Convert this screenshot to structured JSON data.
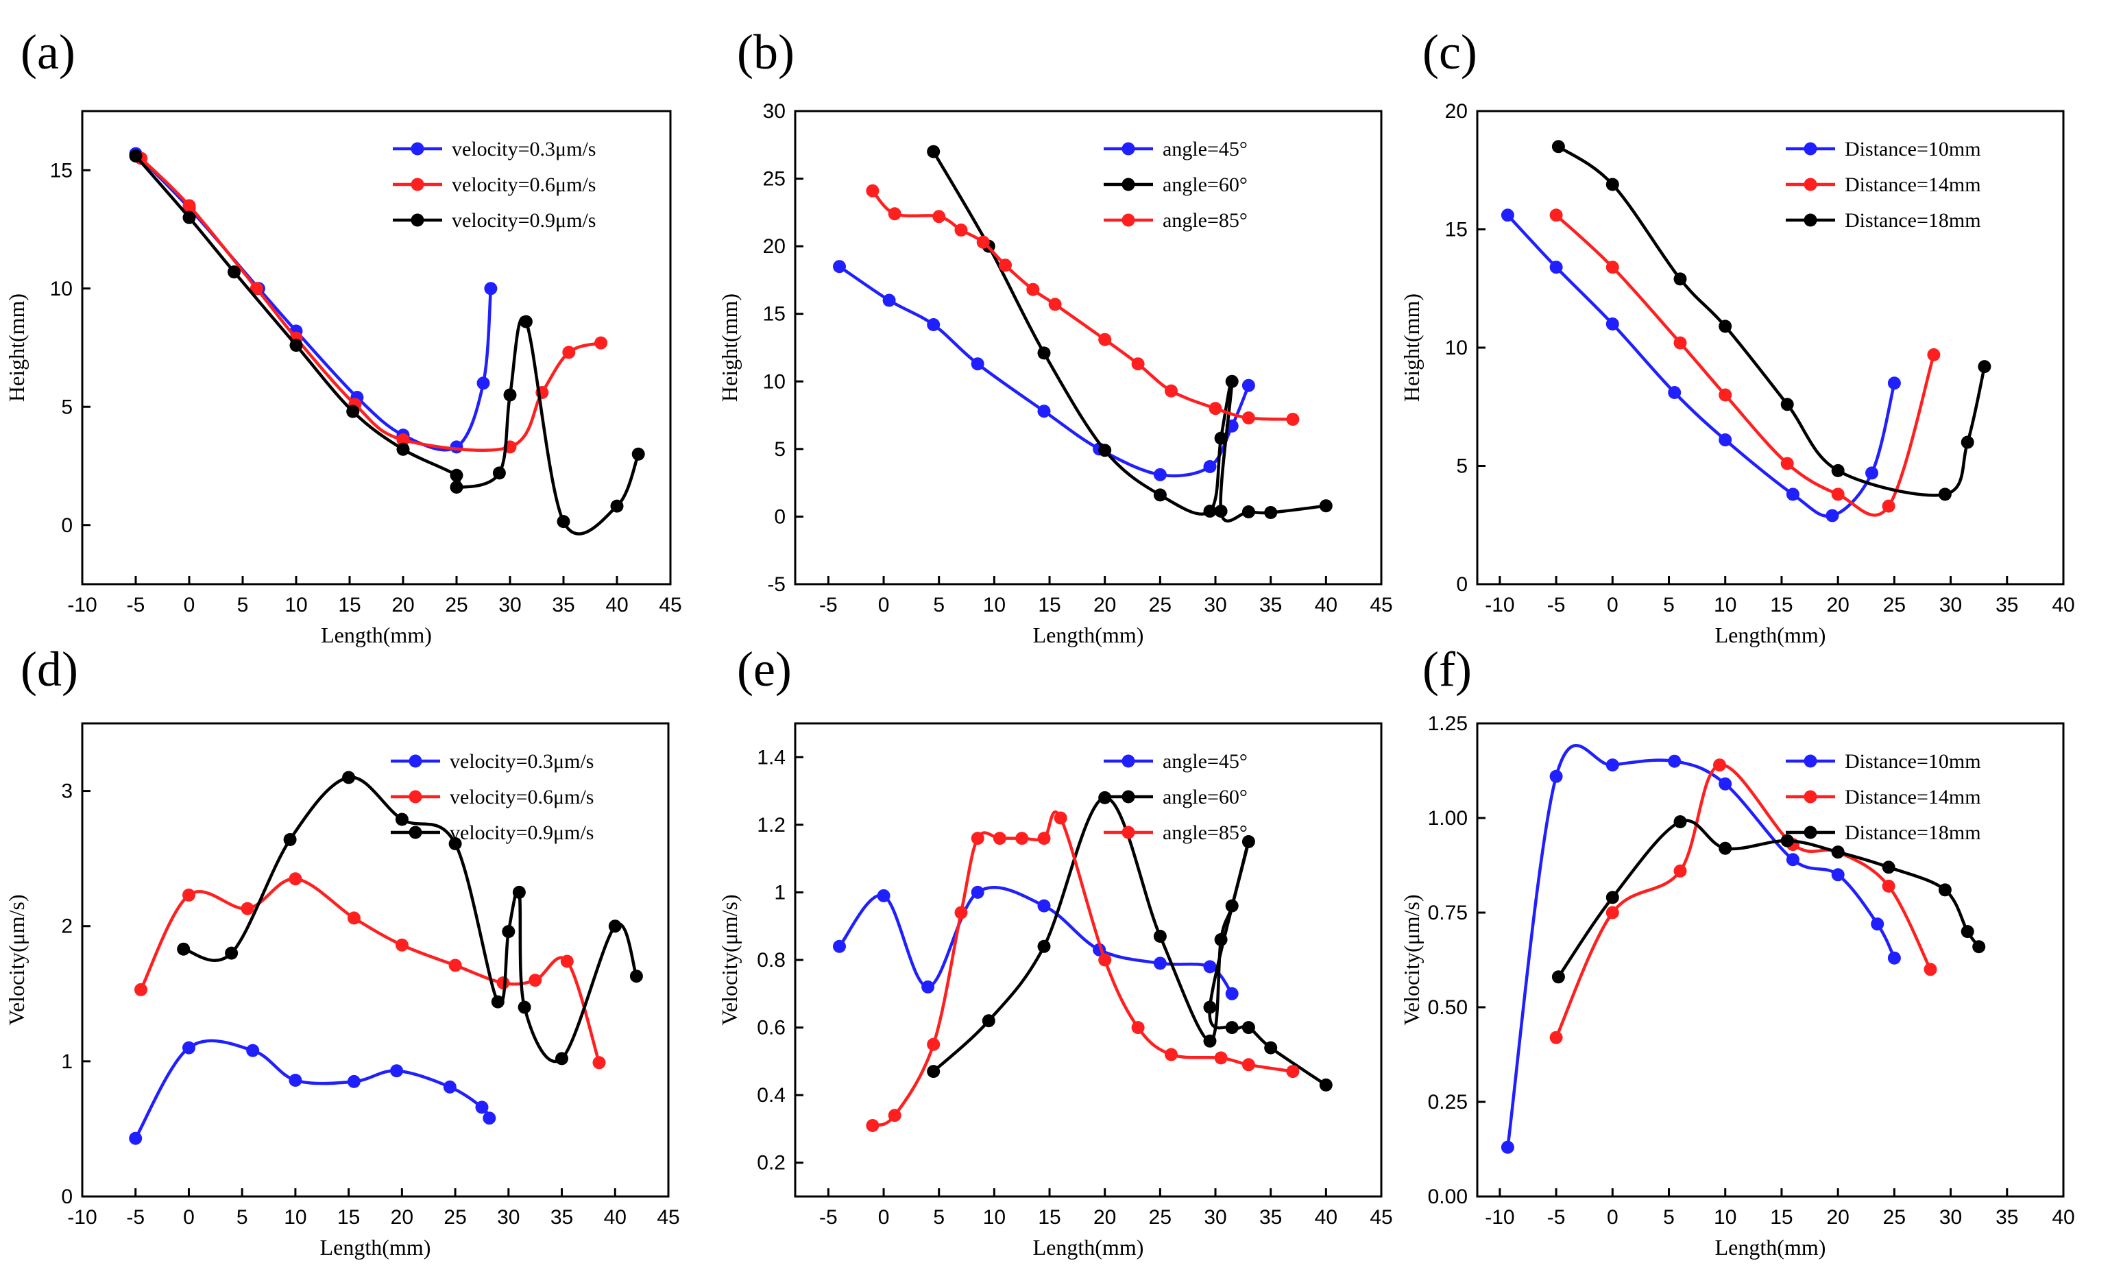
{
  "chart_data": [
    {
      "type": "line",
      "panel_label": "(a)",
      "xlabel": "Length(mm)",
      "ylabel": "Height(mm)",
      "xlim": [
        -10,
        45
      ],
      "ylim": [
        -2.5,
        17.5
      ],
      "xticks": [
        -10,
        -5,
        0,
        5,
        10,
        15,
        20,
        25,
        30,
        35,
        40,
        45
      ],
      "yticks": [
        0,
        5,
        10,
        15
      ],
      "legend": "top-right",
      "series": [
        {
          "name": "velocity=0.3μm/s",
          "color": "#1f1fff",
          "x": [
            -5,
            0,
            6.5,
            10,
            15.7,
            20,
            25,
            27.5,
            28.2
          ],
          "y": [
            15.7,
            13.4,
            10,
            8.2,
            5.4,
            3.8,
            3.3,
            6,
            10
          ]
        },
        {
          "name": "velocity=0.6μm/s",
          "color": "#ff1f1f",
          "x": [
            -4.5,
            0,
            6.3,
            10,
            15.5,
            20,
            30,
            33,
            35.5,
            38.5
          ],
          "y": [
            15.5,
            13.5,
            10,
            7.9,
            5.1,
            3.6,
            3.3,
            5.6,
            7.3,
            7.7
          ]
        },
        {
          "name": "velocity=0.9μm/s",
          "color": "#000000",
          "x": [
            -5,
            0,
            4.2,
            10,
            15.3,
            20,
            25,
            25,
            29,
            30,
            31.5,
            35,
            40,
            42
          ],
          "y": [
            15.6,
            13,
            10.7,
            7.6,
            4.8,
            3.2,
            2.1,
            1.6,
            2.2,
            5.5,
            8.6,
            0.15,
            0.8,
            3
          ]
        }
      ]
    },
    {
      "type": "line",
      "panel_label": "(b)",
      "xlabel": "Length(mm)",
      "ylabel": "Height(mm)",
      "xlim": [
        -8,
        45
      ],
      "ylim": [
        -5,
        30
      ],
      "xticks": [
        -5,
        0,
        5,
        10,
        15,
        20,
        25,
        30,
        35,
        40,
        45
      ],
      "yticks": [
        -5,
        0,
        5,
        10,
        15,
        20,
        25,
        30
      ],
      "legend": "top-right",
      "series": [
        {
          "name": "angle=45°",
          "color": "#1f1fff",
          "x": [
            -4,
            0.5,
            4.5,
            8.5,
            14.5,
            19.5,
            25,
            29.5,
            31.5,
            33
          ],
          "y": [
            18.5,
            16,
            14.2,
            11.3,
            7.8,
            5,
            3.1,
            3.7,
            6.7,
            9.7
          ]
        },
        {
          "name": "angle=60°",
          "color": "#000000",
          "x": [
            4.5,
            9.5,
            14.5,
            20,
            25,
            29.5,
            30.5,
            31.5,
            30.5,
            33,
            35,
            40
          ],
          "y": [
            27,
            20,
            12.1,
            4.9,
            1.6,
            0.4,
            5.8,
            10,
            0.4,
            0.35,
            0.3,
            0.8
          ]
        },
        {
          "name": "angle=85°",
          "color": "#ff1f1f",
          "x": [
            -1,
            1,
            5,
            7,
            9,
            11,
            13.5,
            15.5,
            20,
            23,
            26,
            30,
            33,
            37
          ],
          "y": [
            24.1,
            22.4,
            22.2,
            21.2,
            20.3,
            18.6,
            16.8,
            15.7,
            13.1,
            11.3,
            9.3,
            8,
            7.3,
            7.2
          ]
        }
      ]
    },
    {
      "type": "line",
      "panel_label": "(c)",
      "xlabel": "Length(mm)",
      "ylabel": "Height(mm)",
      "xlim": [
        -12,
        40
      ],
      "ylim": [
        0,
        20
      ],
      "xticks": [
        -10,
        -5,
        0,
        5,
        10,
        15,
        20,
        25,
        30,
        35,
        40
      ],
      "yticks": [
        0,
        5,
        10,
        15,
        20
      ],
      "legend": "top-right",
      "series": [
        {
          "name": "Distance=10mm",
          "color": "#1f1fff",
          "x": [
            -9.3,
            -5,
            0,
            5.5,
            10,
            16,
            19.5,
            23,
            25
          ],
          "y": [
            15.6,
            13.4,
            11,
            8.1,
            6.1,
            3.8,
            2.9,
            4.7,
            8.5
          ]
        },
        {
          "name": "Distance=14mm",
          "color": "#ff1f1f",
          "x": [
            -5,
            0,
            6,
            10,
            15.5,
            20,
            24.5,
            28.5
          ],
          "y": [
            15.6,
            13.4,
            10.2,
            8,
            5.1,
            3.8,
            3.3,
            9.7
          ]
        },
        {
          "name": "Distance=18mm",
          "color": "#000000",
          "x": [
            -4.8,
            0,
            6,
            10,
            15.5,
            20,
            29.5,
            31.5,
            33
          ],
          "y": [
            18.5,
            16.9,
            12.9,
            10.9,
            7.6,
            4.8,
            3.8,
            6,
            9.2
          ]
        }
      ]
    },
    {
      "type": "line",
      "panel_label": "(d)",
      "xlabel": "Length(mm)",
      "ylabel": "Velocity(μm/s)",
      "xlim": [
        -10,
        45
      ],
      "ylim": [
        0,
        3.5
      ],
      "xticks": [
        -10,
        -5,
        0,
        5,
        10,
        15,
        20,
        25,
        30,
        35,
        40,
        45
      ],
      "yticks": [
        0,
        1,
        2,
        3
      ],
      "legend": "top-right",
      "series": [
        {
          "name": "velocity=0.3μm/s",
          "color": "#1f1fff",
          "x": [
            -5,
            0,
            6,
            10,
            15.5,
            19.5,
            24.5,
            27.5,
            28.2
          ],
          "y": [
            0.43,
            1.1,
            1.08,
            0.86,
            0.85,
            0.93,
            0.81,
            0.66,
            0.58
          ]
        },
        {
          "name": "velocity=0.6μm/s",
          "color": "#ff1f1f",
          "x": [
            -4.5,
            0,
            5.5,
            10,
            15.5,
            20,
            25,
            29.5,
            32.5,
            35.5,
            38.5
          ],
          "y": [
            1.53,
            2.23,
            2.13,
            2.35,
            2.06,
            1.86,
            1.71,
            1.58,
            1.6,
            1.74,
            0.99
          ]
        },
        {
          "name": "velocity=0.9μm/s",
          "color": "#000000",
          "x": [
            -0.5,
            4,
            9.5,
            15,
            20,
            25,
            29,
            30,
            31,
            31.5,
            35,
            40,
            42
          ],
          "y": [
            1.83,
            1.8,
            2.64,
            3.1,
            2.79,
            2.61,
            1.44,
            1.96,
            2.25,
            1.4,
            1.02,
            2,
            1.63
          ]
        }
      ]
    },
    {
      "type": "line",
      "panel_label": "(e)",
      "xlabel": "Length(mm)",
      "ylabel": "Velocity(μm/s)",
      "xlim": [
        -8,
        45
      ],
      "ylim": [
        0.1,
        1.5
      ],
      "xticks": [
        -5,
        0,
        5,
        10,
        15,
        20,
        25,
        30,
        35,
        40,
        45
      ],
      "yticks": [
        0.2,
        0.4,
        0.6,
        0.8,
        1.0,
        1.2,
        1.4
      ],
      "legend": "top-right",
      "series": [
        {
          "name": "angle=45°",
          "color": "#1f1fff",
          "x": [
            -4,
            0,
            4,
            8.5,
            14.5,
            19.5,
            25,
            29.5,
            31.5
          ],
          "y": [
            0.84,
            0.99,
            0.72,
            1.0,
            0.96,
            0.83,
            0.79,
            0.78,
            0.7
          ]
        },
        {
          "name": "angle=60°",
          "color": "#000000",
          "x": [
            4.5,
            9.5,
            14.5,
            20,
            25,
            29.5,
            30.5,
            31.5,
            33,
            29.5,
            31.5,
            33,
            35,
            40
          ],
          "y": [
            0.47,
            0.62,
            0.84,
            1.28,
            0.87,
            0.56,
            0.86,
            0.96,
            1.15,
            0.66,
            0.6,
            0.6,
            0.54,
            0.43
          ]
        },
        {
          "name": "angle=85°",
          "color": "#ff1f1f",
          "x": [
            -1,
            1,
            4.5,
            7,
            8.5,
            10.5,
            12.5,
            14.5,
            16,
            20,
            23,
            26,
            30.5,
            33,
            37
          ],
          "y": [
            0.31,
            0.34,
            0.55,
            0.94,
            1.16,
            1.16,
            1.16,
            1.16,
            1.22,
            0.8,
            0.6,
            0.52,
            0.51,
            0.49,
            0.47
          ]
        }
      ]
    },
    {
      "type": "line",
      "panel_label": "(f)",
      "xlabel": "Length(mm)",
      "ylabel": "Velocity(μm/s)",
      "xlim": [
        -12,
        40
      ],
      "ylim": [
        0,
        1.25
      ],
      "xticks": [
        -10,
        -5,
        0,
        5,
        10,
        15,
        20,
        25,
        30,
        35,
        40
      ],
      "yticks": [
        0.0,
        0.25,
        0.5,
        0.75,
        1.0,
        1.25
      ],
      "ytick_labels": [
        "0.00",
        "0.25",
        "0.50",
        "0.75",
        "1.00",
        "1.25"
      ],
      "legend": "top-right",
      "series": [
        {
          "name": "Distance=10mm",
          "color": "#1f1fff",
          "x": [
            -9.3,
            -5,
            0,
            5.5,
            10,
            16,
            20,
            23.5,
            25
          ],
          "y": [
            0.13,
            1.11,
            1.14,
            1.15,
            1.09,
            0.89,
            0.85,
            0.72,
            0.63
          ]
        },
        {
          "name": "Distance=14mm",
          "color": "#ff1f1f",
          "x": [
            -5,
            0,
            6,
            9.5,
            16,
            20,
            24.5,
            28.2
          ],
          "y": [
            0.42,
            0.75,
            0.86,
            1.14,
            0.93,
            0.91,
            0.82,
            0.6
          ]
        },
        {
          "name": "Distance=18mm",
          "color": "#000000",
          "x": [
            -4.8,
            0,
            6,
            10,
            15.5,
            20,
            24.5,
            29.5,
            31.5,
            32.5
          ],
          "y": [
            0.58,
            0.79,
            0.99,
            0.92,
            0.94,
            0.91,
            0.87,
            0.81,
            0.7,
            0.66
          ]
        }
      ]
    }
  ]
}
